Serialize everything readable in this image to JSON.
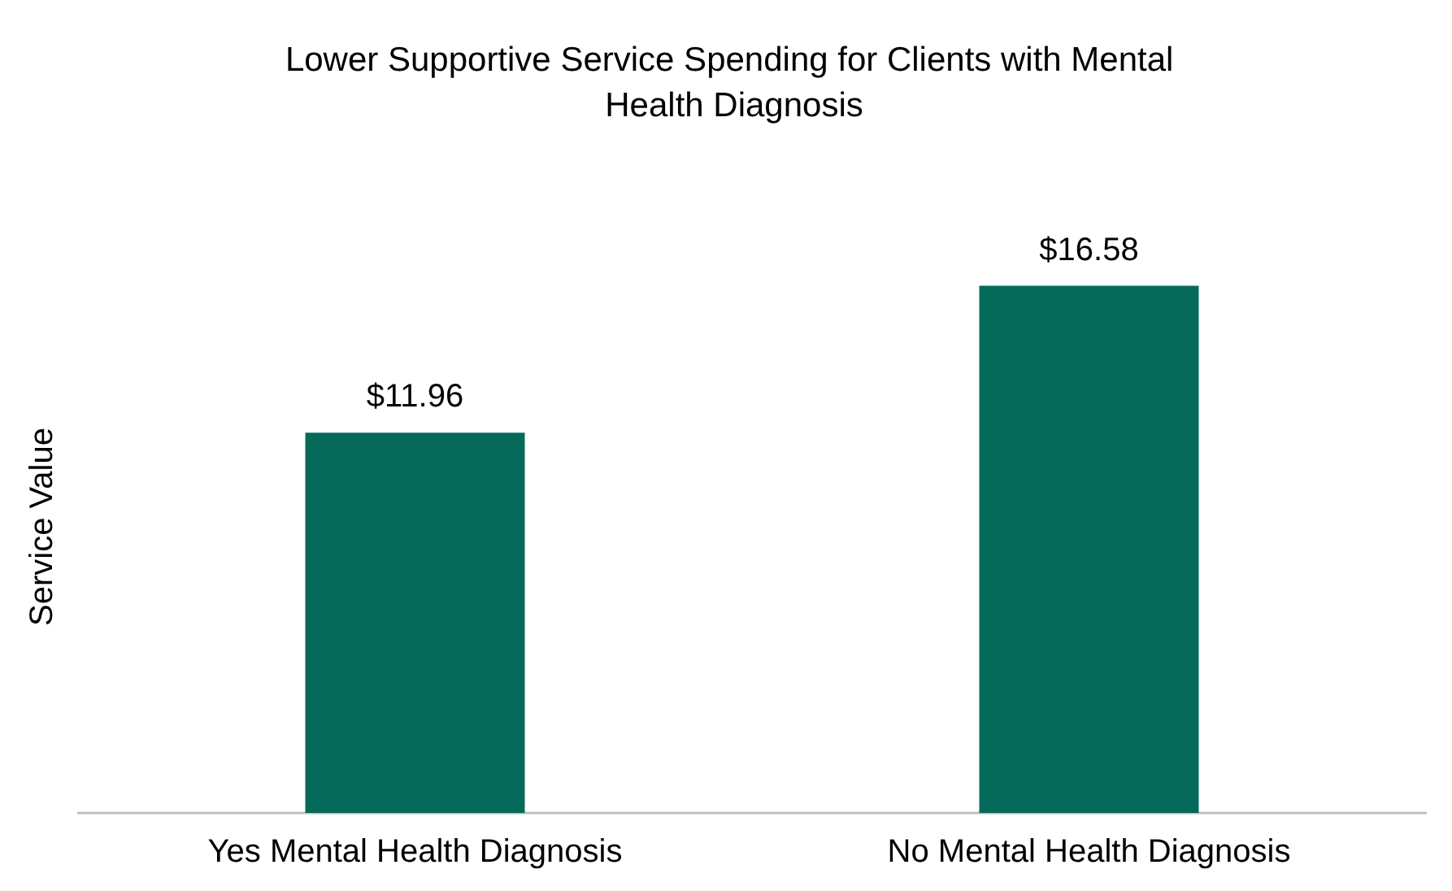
{
  "chart_data": {
    "type": "bar",
    "title": "Lower Supportive Service Spending for Clients with Mental Health Diagnosis",
    "ylabel": "Service Value",
    "categories": [
      "Yes Mental Health Diagnosis",
      "No Mental Health Diagnosis"
    ],
    "values": [
      11.96,
      16.58
    ],
    "color": "#066a5a",
    "value_labels": [
      "$11.96",
      "$16.58"
    ],
    "grid": false
  }
}
